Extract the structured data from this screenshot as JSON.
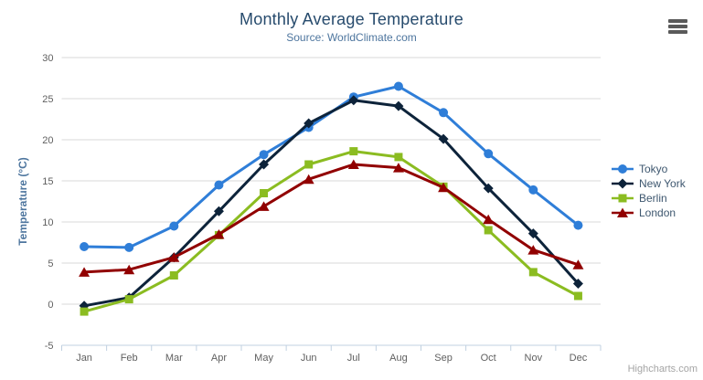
{
  "chart_data": {
    "type": "line",
    "title": "Monthly Average Temperature",
    "subtitle": "Source: WorldClimate.com",
    "ylabel": "Temperature (°C)",
    "xlabel": "",
    "categories": [
      "Jan",
      "Feb",
      "Mar",
      "Apr",
      "May",
      "Jun",
      "Jul",
      "Aug",
      "Sep",
      "Oct",
      "Nov",
      "Dec"
    ],
    "yticks": [
      -5,
      0,
      5,
      10,
      15,
      20,
      25,
      30
    ],
    "ylim": [
      -5,
      30
    ],
    "grid": true,
    "legend_position": "right",
    "series": [
      {
        "name": "Tokyo",
        "color": "#2f7ed8",
        "marker": "circle",
        "values": [
          7.0,
          6.9,
          9.5,
          14.5,
          18.2,
          21.5,
          25.2,
          26.5,
          23.3,
          18.3,
          13.9,
          9.6
        ]
      },
      {
        "name": "New York",
        "color": "#0d233a",
        "marker": "diamond",
        "values": [
          -0.2,
          0.8,
          5.7,
          11.3,
          17.0,
          22.0,
          24.8,
          24.1,
          20.1,
          14.1,
          8.6,
          2.5
        ]
      },
      {
        "name": "Berlin",
        "color": "#8bbc21",
        "marker": "square",
        "values": [
          -0.9,
          0.6,
          3.5,
          8.4,
          13.5,
          17.0,
          18.6,
          17.9,
          14.3,
          9.0,
          3.9,
          1.0
        ]
      },
      {
        "name": "London",
        "color": "#910000",
        "marker": "triangle",
        "values": [
          3.9,
          4.2,
          5.7,
          8.5,
          11.9,
          15.2,
          17.0,
          16.6,
          14.2,
          10.3,
          6.6,
          4.8
        ]
      }
    ]
  },
  "credits": "Highcharts.com",
  "export_menu_icon": "hamburger-icon",
  "colors": {
    "title": "#274b6d",
    "subtitle": "#4d759e",
    "axis_label": "#606060",
    "axis_title": "#4d759e",
    "gridline": "#d8d8d8",
    "axis_line": "#c0d0e0",
    "legend_text": "#3e576f",
    "credits_text": "#a5a5a5",
    "burger_icon": "#5a5a5a"
  }
}
